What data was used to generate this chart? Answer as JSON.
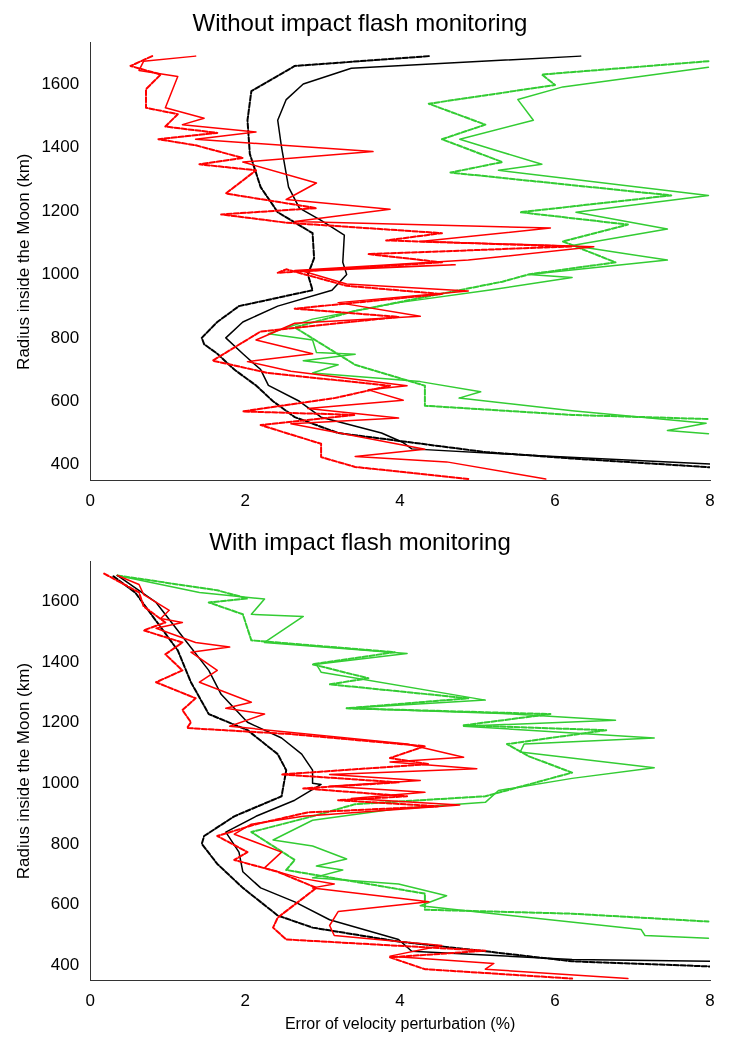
{
  "chart_data": [
    {
      "type": "line",
      "title": "Without impact flash monitoring",
      "ylabel": "Radius inside the Moon (km)",
      "xlim": [
        0,
        8
      ],
      "xticks": [
        0,
        2,
        4,
        6,
        8
      ],
      "ylim": [
        350,
        1730
      ],
      "yticks": [
        400,
        600,
        800,
        1000,
        1200,
        1400,
        1600
      ],
      "grid": false,
      "legend": false,
      "marker": "none",
      "series": [
        {
          "color": "#ff0000",
          "line_style": "solid",
          "x": [
            1.36,
            0.69,
            0.63,
            1.13,
            0.97,
            1.47,
            1.19,
            2.14,
            1.36,
            3.65,
            1.97,
            2.92,
            2.53,
            3.87,
            2.64,
            5.94,
            4.26,
            6.5,
            4.88,
            2.64,
            4.71,
            2.75,
            3.31,
            4.88,
            3.2,
            4.26,
            2.64,
            2.14,
            2.87,
            2.03,
            2.59,
            4.09,
            3.59,
            4.04,
            2.81,
            3.98,
            2.59,
            4.32,
            3.42,
            4.6,
            5.88
          ],
          "values": [
            1688,
            1672,
            1643,
            1624,
            1525,
            1492,
            1472,
            1449,
            1426,
            1387,
            1354,
            1288,
            1236,
            1205,
            1167,
            1146,
            1104,
            1087,
            1045,
            1012,
            1030,
            1010,
            970,
            948,
            911,
            868,
            846,
            793,
            750,
            725,
            695,
            649,
            636,
            603,
            577,
            547,
            529,
            449,
            426,
            409,
            355
          ]
        },
        {
          "color": "#ff0000",
          "line_style": "dashed",
          "x": [
            0.8,
            0.52,
            0.91,
            0.72,
            0.72,
            1.13,
            0.97,
            1.64,
            0.88,
            1.36,
            1.97,
            1.41,
            2.14,
            1.75,
            2.92,
            1.69,
            2.53,
            4.54,
            3.82,
            6.22,
            3.59,
            4.54,
            2.42,
            2.53,
            3.31,
            4.54,
            2.64,
            3.98,
            2.2,
            1.58,
            2.3,
            3.87,
            3.15,
            1.97,
            3.42,
            2.2,
            2.98,
            2.98,
            3.42,
            4.88
          ],
          "values": [
            1688,
            1657,
            1630,
            1584,
            1525,
            1505,
            1466,
            1446,
            1426,
            1407,
            1367,
            1347,
            1328,
            1255,
            1209,
            1189,
            1163,
            1130,
            1107,
            1088,
            1064,
            1038,
            1005,
            1016,
            964,
            938,
            892,
            866,
            820,
            728,
            689,
            649,
            610,
            568,
            557,
            525,
            466,
            424,
            393,
            355
          ]
        },
        {
          "color": "#000000",
          "line_style": "solid",
          "x": [
            6.33,
            3.37,
            2.75,
            2.53,
            2.42,
            2.47,
            2.56,
            2.7,
            2.98,
            3.28,
            3.26,
            3.31,
            3.12,
            2.42,
            1.97,
            1.75,
            1.97,
            2.2,
            2.3,
            2.7,
            2.98,
            3.76,
            4.04,
            4.15,
            5.66,
            8.0
          ],
          "values": [
            1688,
            1650,
            1600,
            1551,
            1486,
            1400,
            1275,
            1209,
            1170,
            1124,
            1038,
            1000,
            950,
            900,
            850,
            800,
            750,
            700,
            650,
            600,
            550,
            500,
            470,
            450,
            430,
            402
          ]
        },
        {
          "color": "#000000",
          "line_style": "dashed",
          "x": [
            4.37,
            2.64,
            2.08,
            2.03,
            2.06,
            2.2,
            2.42,
            2.87,
            2.89,
            2.81,
            2.87,
            1.92,
            1.64,
            1.44,
            1.47,
            1.64,
            1.86,
            2.14,
            2.36,
            2.64,
            3.2,
            4.15,
            5.1,
            6.2,
            8.0
          ],
          "values": [
            1688,
            1657,
            1578,
            1486,
            1380,
            1275,
            1196,
            1130,
            1051,
            1000,
            950,
            900,
            850,
            800,
            780,
            750,
            700,
            650,
            600,
            550,
            500,
            470,
            440,
            420,
            392
          ]
        },
        {
          "color": "#33cc33",
          "line_style": "solid",
          "x": [
            7.98,
            6.1,
            5.52,
            5.72,
            4.77,
            5.21,
            5.83,
            5.27,
            7.98,
            6.27,
            7.45,
            6.22,
            7.45,
            5.66,
            6.22,
            5.16,
            3.98,
            2.87,
            2.3,
            2.87,
            2.92,
            3.42,
            2.75,
            3.2,
            2.87,
            4.26,
            5.04,
            4.76,
            6.22,
            7.95,
            7.45,
            7.98
          ],
          "values": [
            1653,
            1591,
            1551,
            1486,
            1426,
            1393,
            1347,
            1328,
            1249,
            1196,
            1143,
            1091,
            1045,
            1000,
            990,
            951,
            911,
            859,
            813,
            793,
            754,
            748,
            728,
            715,
            689,
            662,
            630,
            610,
            570,
            531,
            508,
            498
          ]
        },
        {
          "color": "#33cc33",
          "line_style": "dashed",
          "x": [
            7.98,
            5.83,
            6.0,
            4.37,
            5.1,
            4.54,
            5.32,
            4.65,
            7.5,
            5.55,
            6.94,
            6.1,
            6.78,
            5.66,
            5.32,
            3.42,
            2.64,
            3.42,
            4.32,
            4.32,
            6.22,
            7.98
          ],
          "values": [
            1672,
            1630,
            1597,
            1538,
            1472,
            1426,
            1354,
            1321,
            1249,
            1196,
            1157,
            1104,
            1038,
            1000,
            977,
            885,
            833,
            715,
            649,
            586,
            557,
            544
          ]
        }
      ]
    },
    {
      "type": "line",
      "title": "With impact flash monitoring",
      "xlabel": "Error of velocity perturbation (%)",
      "ylabel": "Radius inside the Moon (km)",
      "xlim": [
        0,
        8
      ],
      "xticks": [
        0,
        2,
        4,
        6,
        8
      ],
      "ylim": [
        350,
        1730
      ],
      "yticks": [
        400,
        600,
        800,
        1000,
        1200,
        1400,
        1600
      ],
      "grid": false,
      "legend": false,
      "marker": "none",
      "series": [
        {
          "color": "#ff0000",
          "line_style": "solid",
          "x": [
            0.35,
            0.63,
            0.69,
            1.02,
            0.91,
            1.19,
            0.85,
            1.36,
            1.8,
            1.3,
            1.64,
            1.41,
            2.08,
            1.75,
            2.25,
            1.8,
            4.09,
            4.82,
            3.87,
            4.99,
            3.09,
            4.26,
            3.09,
            4.32,
            3.37,
            4.77,
            2.75,
            2.08,
            1.86,
            2.47,
            2.25,
            2.7,
            3.15,
            2.87,
            4.37,
            3.2,
            3.09,
            3.15,
            4.54,
            3.87,
            5.21,
            5.1,
            6.94
          ],
          "values": [
            1685,
            1655,
            1622,
            1570,
            1543,
            1530,
            1511,
            1464,
            1449,
            1432,
            1372,
            1333,
            1267,
            1247,
            1228,
            1188,
            1129,
            1086,
            1070,
            1048,
            1029,
            1009,
            990,
            970,
            950,
            928,
            891,
            865,
            832,
            773,
            721,
            688,
            668,
            655,
            609,
            577,
            531,
            498,
            465,
            430,
            406,
            387,
            356
          ]
        },
        {
          "color": "#ff0000",
          "line_style": "dashed",
          "x": [
            0.18,
            0.63,
            0.69,
            0.97,
            0.69,
            1.19,
            0.97,
            1.19,
            0.85,
            1.36,
            1.19,
            1.3,
            1.25,
            2.59,
            4.32,
            3.87,
            4.37,
            2.47,
            3.98,
            2.75,
            4.09,
            3.2,
            4.49,
            2.81,
            2.14,
            1.64,
            2.03,
            1.86,
            2.42,
            2.92,
            2.42,
            2.36,
            2.53,
            5.1,
            3.87,
            4.32,
            6.22
          ],
          "values": [
            1691,
            1629,
            1583,
            1530,
            1504,
            1464,
            1425,
            1372,
            1333,
            1280,
            1241,
            1201,
            1182,
            1162,
            1122,
            1083,
            1063,
            1029,
            1003,
            983,
            957,
            944,
            924,
            904,
            865,
            826,
            773,
            747,
            708,
            655,
            557,
            524,
            485,
            448,
            426,
            387,
            356
          ]
        },
        {
          "color": "#000000",
          "line_style": "solid",
          "x": [
            0.35,
            0.85,
            1.25,
            1.53,
            1.69,
            2.03,
            2.47,
            2.73,
            2.87,
            2.87,
            2.98,
            2.64,
            2.14,
            1.75,
            1.92,
            1.97,
            2.2,
            2.64,
            3.09,
            3.98,
            4.15,
            6.22,
            8.0
          ],
          "values": [
            1685,
            1596,
            1464,
            1372,
            1293,
            1201,
            1149,
            1096,
            1043,
            1000,
            996,
            944,
            891,
            839,
            773,
            708,
            655,
            609,
            550,
            485,
            446,
            419,
            413
          ]
        },
        {
          "color": "#000000",
          "line_style": "dashed",
          "x": [
            0.3,
            0.58,
            1.13,
            1.3,
            1.53,
            2.03,
            2.42,
            2.53,
            2.47,
            1.86,
            1.47,
            1.44,
            1.64,
            1.97,
            2.42,
            2.87,
            3.98,
            5.1,
            6.22,
            8.0
          ],
          "values": [
            1682,
            1629,
            1438,
            1333,
            1228,
            1175,
            1096,
            1043,
            957,
            891,
            826,
            800,
            734,
            655,
            564,
            524,
            478,
            446,
            413,
            396
          ]
        },
        {
          "color": "#33cc33",
          "line_style": "solid",
          "x": [
            0.35,
            1.41,
            2.25,
            2.08,
            2.75,
            2.25,
            4.09,
            2.92,
            2.98,
            5.1,
            3.31,
            5.32,
            6.78,
            4.82,
            7.28,
            5.6,
            5.55,
            7.28,
            6.22,
            5.27,
            5.1,
            3.98,
            2.87,
            2.36,
            2.87,
            3.31,
            2.92,
            3.26,
            2.87,
            3.98,
            4.6,
            4.26,
            7.11,
            7.16,
            7.98
          ],
          "values": [
            1685,
            1629,
            1607,
            1557,
            1550,
            1464,
            1428,
            1392,
            1366,
            1274,
            1247,
            1230,
            1208,
            1188,
            1149,
            1129,
            1103,
            1051,
            1016,
            976,
            937,
            917,
            878,
            813,
            793,
            750,
            727,
            714,
            688,
            668,
            629,
            596,
            518,
            498,
            489
          ]
        },
        {
          "color": "#33cc33",
          "line_style": "dashed",
          "x": [
            0.35,
            1.64,
            2.03,
            1.53,
            1.97,
            2.08,
            3.93,
            2.87,
            3.59,
            3.09,
            4.88,
            3.31,
            5.94,
            4.82,
            6.66,
            5.38,
            5.66,
            6.22,
            5.1,
            3.42,
            2.87,
            2.08,
            2.64,
            2.53,
            4.32,
            4.32,
            6.22,
            7.98
          ],
          "values": [
            1685,
            1636,
            1609,
            1596,
            1557,
            1471,
            1432,
            1392,
            1346,
            1326,
            1280,
            1247,
            1228,
            1191,
            1175,
            1129,
            1089,
            1035,
            957,
            931,
            891,
            839,
            747,
            714,
            636,
            583,
            570,
            544
          ]
        }
      ]
    }
  ]
}
